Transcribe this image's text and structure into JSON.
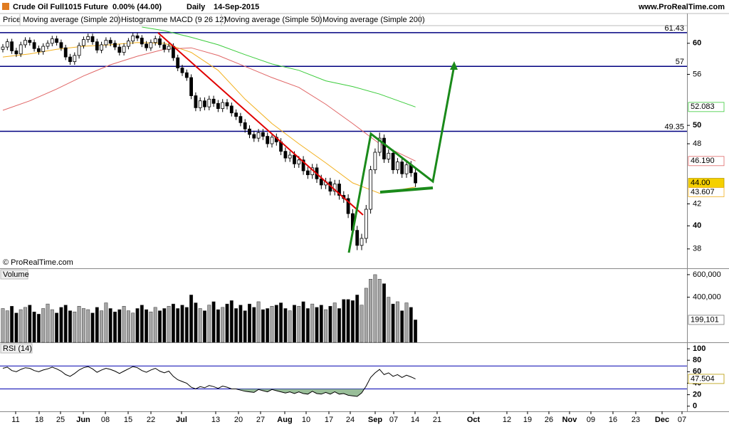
{
  "header": {
    "instrument": "Crude Oil Full1015 Future",
    "change": "0.00% (44.00)",
    "period": "Daily",
    "date": "14-Sep-2015",
    "site": "www.ProRealTime.com"
  },
  "x_axis": {
    "labels": [
      "11",
      "18",
      "25",
      "Jun",
      "08",
      "15",
      "22",
      "Jul",
      "13",
      "20",
      "27",
      "Aug",
      "10",
      "17",
      "24",
      "Sep",
      "07",
      "14",
      "21",
      "Oct",
      "12",
      "19",
      "26",
      "Nov",
      "09",
      "16",
      "23",
      "Dec",
      "07"
    ]
  },
  "chart_data": [
    {
      "type": "candlestick",
      "label": "Price",
      "ylog": true,
      "ylim": [
        36.4,
        62.4
      ],
      "yticks": [
        38,
        40,
        42,
        48,
        50,
        56,
        60
      ],
      "up_color": "#ffffff",
      "down_color": "#000000",
      "level_color": "#000080",
      "levels": [
        61.43,
        57,
        49.35
      ],
      "last_price": {
        "value": 44,
        "label": "44.00"
      },
      "indicators": [
        "Histogramme MACD (9 26 12)"
      ],
      "copyright": "© ProRealTime.com",
      "open": [
        59.2,
        59.5,
        60.2,
        59.0,
        58.6,
        59.8,
        60.4,
        60.1,
        59.3,
        58.9,
        59.6,
        60.0,
        60.6,
        60.1,
        59.4,
        58.2,
        57.6,
        58.4,
        59.7,
        60.5,
        60.9,
        60.2,
        59.1,
        59.8,
        60.4,
        60.0,
        59.5,
        58.8,
        59.6,
        60.3,
        61.0,
        60.7,
        59.9,
        59.4,
        60.1,
        60.6,
        59.8,
        59.2,
        59.6,
        58.1,
        56.8,
        56.2,
        55.6,
        53.4,
        52.0,
        52.8,
        52.1,
        53.0,
        52.5,
        51.9,
        52.6,
        52.2,
        51.4,
        51.0,
        50.3,
        49.6,
        49.0,
        48.6,
        49.2,
        48.8,
        48.0,
        48.7,
        48.2,
        47.2,
        46.5,
        46.8,
        45.9,
        46.3,
        45.2,
        44.8,
        45.5,
        44.4,
        43.8,
        44.1,
        43.2,
        43.9,
        42.8,
        42.5,
        41.1,
        39.6,
        38.3,
        38.9,
        41.5,
        45.3,
        47.1,
        48.6,
        46.4,
        47.0,
        45.3,
        46.1,
        44.9,
        45.8,
        45.0
      ],
      "high": [
        59.9,
        60.6,
        60.6,
        59.4,
        60.2,
        60.8,
        60.8,
        60.5,
        59.7,
        60.0,
        60.4,
        61.0,
        61.0,
        60.5,
        59.8,
        58.6,
        58.8,
        60.1,
        60.9,
        61.3,
        61.3,
        60.6,
        60.2,
        60.8,
        60.8,
        60.4,
        59.9,
        60.0,
        60.7,
        61.4,
        61.4,
        61.1,
        60.3,
        60.5,
        61.0,
        61.0,
        60.2,
        60.0,
        60.0,
        58.5,
        57.2,
        56.6,
        56.0,
        53.8,
        53.2,
        53.2,
        53.4,
        53.4,
        52.9,
        53.0,
        53.0,
        52.6,
        51.8,
        51.4,
        50.7,
        50.0,
        49.4,
        49.6,
        49.6,
        49.2,
        49.1,
        49.1,
        48.6,
        47.6,
        47.2,
        47.2,
        46.7,
        46.7,
        45.6,
        45.9,
        45.9,
        44.8,
        44.5,
        44.5,
        44.3,
        44.3,
        43.2,
        42.9,
        41.5,
        40.0,
        39.3,
        41.9,
        45.7,
        47.5,
        49.2,
        49.0,
        47.4,
        47.4,
        46.5,
        46.5,
        46.2,
        46.2,
        45.4
      ],
      "low": [
        58.8,
        59.1,
        58.6,
        58.2,
        58.2,
        59.4,
        59.7,
        58.9,
        58.5,
        58.5,
        59.2,
        59.6,
        59.7,
        59.0,
        57.8,
        57.2,
        57.2,
        58.0,
        59.3,
        60.1,
        59.8,
        58.7,
        58.7,
        59.4,
        59.6,
        59.1,
        58.4,
        58.4,
        59.2,
        59.9,
        60.3,
        59.5,
        59.0,
        59.0,
        59.7,
        59.4,
        58.8,
        58.8,
        57.7,
        56.4,
        55.8,
        55.2,
        53.0,
        51.6,
        51.6,
        51.7,
        51.7,
        52.1,
        51.5,
        51.5,
        51.8,
        51.0,
        50.6,
        49.9,
        49.2,
        48.6,
        48.2,
        48.2,
        48.4,
        47.6,
        47.6,
        47.8,
        46.8,
        46.1,
        46.1,
        45.5,
        45.5,
        44.8,
        44.4,
        44.4,
        44.0,
        43.4,
        43.4,
        42.8,
        42.8,
        42.4,
        42.1,
        40.7,
        39.2,
        37.9,
        37.9,
        38.5,
        41.1,
        44.9,
        46.7,
        46.0,
        46.0,
        44.9,
        44.9,
        44.5,
        44.5,
        44.6,
        43.6
      ],
      "close": [
        59.5,
        60.2,
        59.0,
        58.6,
        59.8,
        60.4,
        60.1,
        59.3,
        58.9,
        59.6,
        60.0,
        60.6,
        60.1,
        59.4,
        58.2,
        57.6,
        58.4,
        59.7,
        60.5,
        60.9,
        60.2,
        59.1,
        59.8,
        60.4,
        60.0,
        59.5,
        58.8,
        59.6,
        60.3,
        61.0,
        60.7,
        59.9,
        59.4,
        60.1,
        60.6,
        59.8,
        59.2,
        59.6,
        58.1,
        56.8,
        56.2,
        55.6,
        53.4,
        52.0,
        52.8,
        52.1,
        53.0,
        52.5,
        51.9,
        52.6,
        52.2,
        51.4,
        51.0,
        50.3,
        49.6,
        49.0,
        48.6,
        49.2,
        48.8,
        48.0,
        48.7,
        48.2,
        47.2,
        46.5,
        46.8,
        45.9,
        46.3,
        45.2,
        44.8,
        45.5,
        44.4,
        43.8,
        44.1,
        43.2,
        43.9,
        42.8,
        42.5,
        41.1,
        39.6,
        38.3,
        38.9,
        41.5,
        45.3,
        47.1,
        48.6,
        46.4,
        47.0,
        45.3,
        46.1,
        44.9,
        45.8,
        45.0,
        44.0
      ],
      "series": [
        {
          "name": "Moving average (Simple 20)",
          "color": "#f2b01e",
          "last_label": "43.607",
          "x": [
            0,
            6,
            12,
            18,
            24,
            30,
            36,
            42,
            48,
            54,
            60,
            66,
            72,
            78,
            84,
            92
          ],
          "values": [
            58.2,
            58.6,
            59.2,
            59.6,
            59.8,
            60.1,
            60.0,
            58.8,
            56.5,
            53.0,
            50.2,
            48.0,
            46.0,
            44.0,
            43.0,
            43.607
          ]
        },
        {
          "name": "Moving average (Simple 50)",
          "color": "#e06666",
          "last_label": "46.190",
          "x": [
            0,
            6,
            12,
            18,
            24,
            30,
            36,
            42,
            48,
            54,
            60,
            66,
            72,
            78,
            84,
            92
          ],
          "values": [
            51.7,
            52.8,
            54.2,
            55.8,
            57.2,
            58.3,
            59.2,
            59.4,
            58.4,
            57.0,
            55.6,
            54.4,
            52.4,
            50.2,
            48.0,
            46.19
          ]
        },
        {
          "name": "Moving average (Simple 200)",
          "color": "#3ccc3c",
          "last_label": "52.083",
          "x": [
            31,
            36,
            42,
            48,
            54,
            60,
            66,
            72,
            78,
            84,
            92
          ],
          "values": [
            62.2,
            61.7,
            60.8,
            59.8,
            58.5,
            57.3,
            56.5,
            55.2,
            54.5,
            53.6,
            52.083
          ]
        }
      ]
    },
    {
      "type": "bar",
      "label": "Volume",
      "ylim": [
        0,
        650000
      ],
      "yticks": [
        {
          "value": 400000,
          "label": "400,000"
        },
        {
          "value": 600000,
          "label": "600,000"
        }
      ],
      "up_color": "#a6a6a6",
      "down_color": "#000000",
      "last_label": "199,101",
      "values": [
        300000,
        280000,
        320000,
        260000,
        290000,
        310000,
        330000,
        270000,
        250000,
        300000,
        340000,
        290000,
        260000,
        310000,
        330000,
        280000,
        270000,
        320000,
        300000,
        290000,
        260000,
        310000,
        280000,
        350000,
        300000,
        270000,
        290000,
        320000,
        280000,
        260000,
        300000,
        330000,
        290000,
        270000,
        310000,
        280000,
        300000,
        320000,
        340000,
        300000,
        330000,
        310000,
        420000,
        350000,
        300000,
        280000,
        330000,
        360000,
        290000,
        310000,
        340000,
        370000,
        300000,
        330000,
        280000,
        340000,
        310000,
        360000,
        290000,
        300000,
        320000,
        330000,
        350000,
        300000,
        280000,
        330000,
        320000,
        360000,
        300000,
        340000,
        310000,
        330000,
        290000,
        320000,
        350000,
        300000,
        380000,
        380000,
        370000,
        420000,
        330000,
        480000,
        560000,
        600000,
        560000,
        520000,
        400000,
        340000,
        360000,
        280000,
        350000,
        310000,
        199101
      ]
    },
    {
      "type": "line",
      "label": "RSI (14)",
      "ylim": [
        -9,
        110
      ],
      "yticks": [
        0,
        20,
        40,
        60,
        80,
        100
      ],
      "color": "#000000",
      "level_color": "#0000b0",
      "fill": "#7fae7f",
      "levels": [
        30,
        70
      ],
      "values": [
        66,
        68,
        62,
        60,
        64,
        67,
        66,
        62,
        60,
        63,
        65,
        68,
        65,
        61,
        55,
        52,
        57,
        63,
        67,
        69,
        65,
        59,
        63,
        66,
        64,
        61,
        57,
        61,
        65,
        69,
        67,
        62,
        59,
        63,
        66,
        61,
        58,
        61,
        52,
        46,
        43,
        40,
        33,
        30,
        34,
        32,
        36,
        34,
        31,
        35,
        33,
        30,
        30,
        28,
        26,
        25,
        24,
        29,
        27,
        25,
        29,
        27,
        25,
        23,
        25,
        22,
        25,
        22,
        21,
        26,
        22,
        21,
        24,
        21,
        25,
        21,
        22,
        19,
        18,
        17,
        23,
        35,
        50,
        58,
        64,
        55,
        58,
        52,
        55,
        50,
        54,
        51,
        47.504
      ]
    }
  ]
}
